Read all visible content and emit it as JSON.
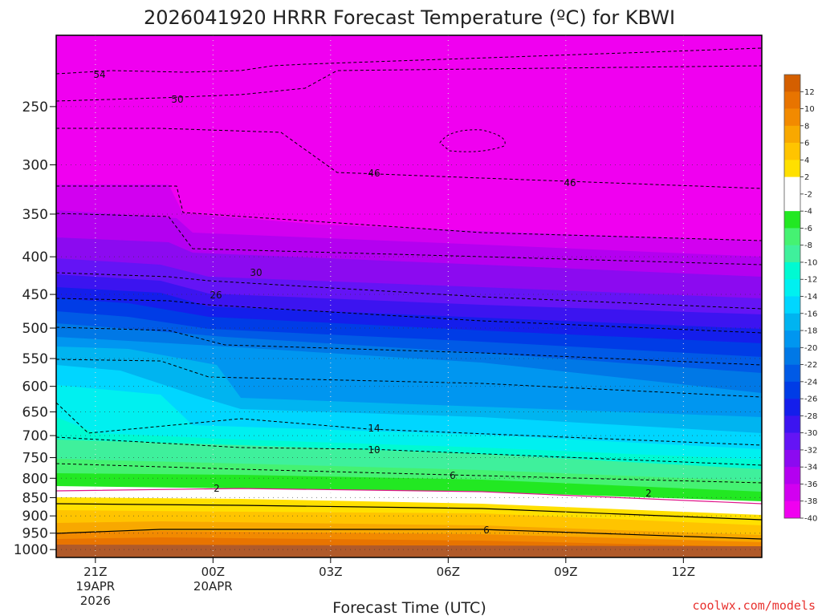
{
  "chart_data": {
    "type": "heatmap",
    "title": "2026041920 HRRR Forecast Temperature (ºC) for KBWI",
    "xlabel": "Forecast Time (UTC)",
    "ylabel": "",
    "credit": "coolwx.com/models",
    "x_ticks": [
      {
        "label": "21Z",
        "sub1": "19APR",
        "sub2": "2026",
        "hour": 1
      },
      {
        "label": "00Z",
        "sub1": "20APR",
        "sub2": "",
        "hour": 4
      },
      {
        "label": "03Z",
        "sub1": "",
        "sub2": "",
        "hour": 7
      },
      {
        "label": "06Z",
        "sub1": "",
        "sub2": "",
        "hour": 10
      },
      {
        "label": "09Z",
        "sub1": "",
        "sub2": "",
        "hour": 13
      },
      {
        "label": "12Z",
        "sub1": "",
        "sub2": "",
        "hour": 16
      }
    ],
    "xlim": [
      0,
      18
    ],
    "y_ticks": [
      250,
      300,
      350,
      400,
      450,
      500,
      550,
      600,
      650,
      700,
      750,
      800,
      850,
      900,
      950,
      1000
    ],
    "ylim": [
      1025,
      200
    ],
    "y_scale": "log pressure (hPa, inverted)",
    "grid": true,
    "legend": "colorbar right",
    "colorbar": {
      "labels": [
        "12",
        "10",
        "8",
        "6",
        "4",
        "2",
        "-2",
        "-4",
        "-6",
        "-8",
        "-10",
        "-12",
        "-14",
        "-16",
        "-18",
        "-20",
        "-22",
        "-24",
        "-26",
        "-28",
        "-30",
        "-32",
        "-34",
        "-36",
        "-38",
        "-40"
      ],
      "colors": [
        "#d45f00",
        "#e87400",
        "#f28a00",
        "#f8a800",
        "#ffc400",
        "#ffe000",
        "#ffffff",
        "#ffffff",
        "#22e822",
        "#45f272",
        "#3ff09c",
        "#00fad2",
        "#00f0f0",
        "#00d6ff",
        "#00b4f0",
        "#0096f0",
        "#0078e6",
        "#005ae6",
        "#003ce6",
        "#141eeb",
        "#3c14f0",
        "#6414f5",
        "#8c0af0",
        "#b400f0",
        "#d200f0",
        "#f000f0"
      ]
    },
    "contour_levels_labeled": [
      "54",
      "50",
      "46",
      "46",
      "30",
      "26",
      "14",
      "10",
      "6",
      "2",
      "2",
      "6"
    ]
  }
}
